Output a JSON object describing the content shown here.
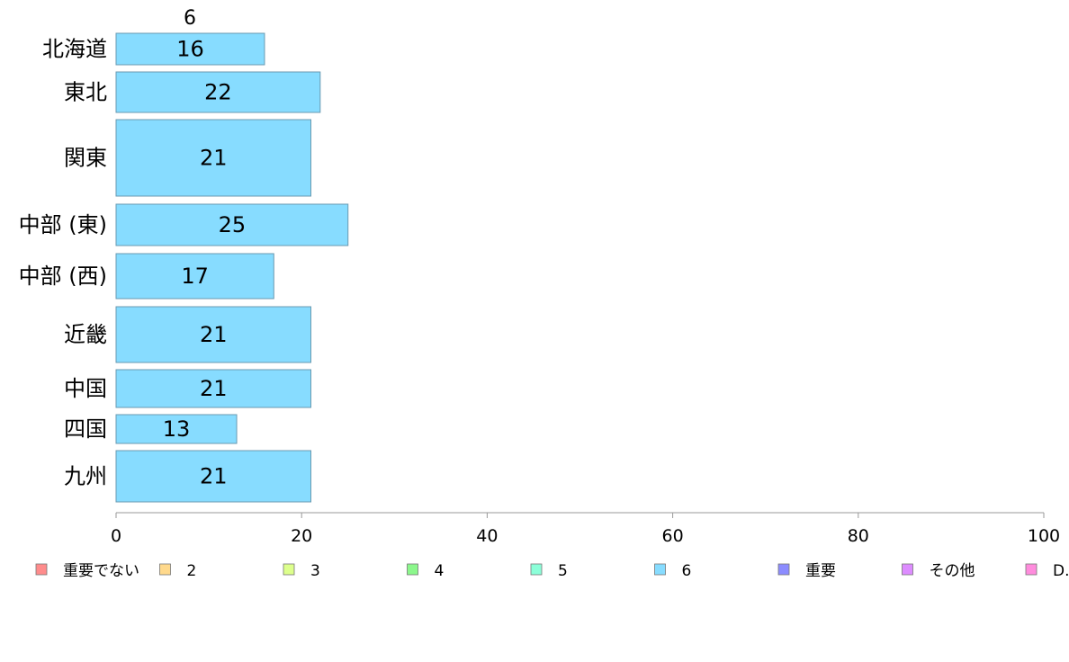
{
  "chart_data": {
    "type": "bar",
    "orientation": "horizontal",
    "title": "",
    "top_label": "6",
    "categories": [
      "北海道",
      "東北",
      "関東",
      "中部 (東)",
      "中部 (西)",
      "近畿",
      "中国",
      "四国",
      "九州"
    ],
    "series": [
      {
        "name": "6",
        "values": [
          16,
          22,
          21,
          25,
          17,
          21,
          21,
          13,
          21
        ],
        "color": "#87dcff"
      }
    ],
    "xlim": [
      0,
      100
    ],
    "xticks": [
      0,
      20,
      40,
      60,
      80,
      100
    ],
    "bar_labels": [
      "16",
      "22",
      "21",
      "25",
      "17",
      "21",
      "21",
      "13",
      "21"
    ],
    "legend": [
      {
        "label": "重要でない",
        "color": "#ff8c8c"
      },
      {
        "label": "2",
        "color": "#ffd98c"
      },
      {
        "label": "3",
        "color": "#ddff8c"
      },
      {
        "label": "4",
        "color": "#8cf78c"
      },
      {
        "label": "5",
        "color": "#8cffd9"
      },
      {
        "label": "6",
        "color": "#87dcff"
      },
      {
        "label": "重要",
        "color": "#8c8cff"
      },
      {
        "label": "その他",
        "color": "#dd8cff"
      },
      {
        "label": "D.K.",
        "color": "#ff8cdd"
      }
    ],
    "legend_position": "bottom",
    "grid": false
  }
}
